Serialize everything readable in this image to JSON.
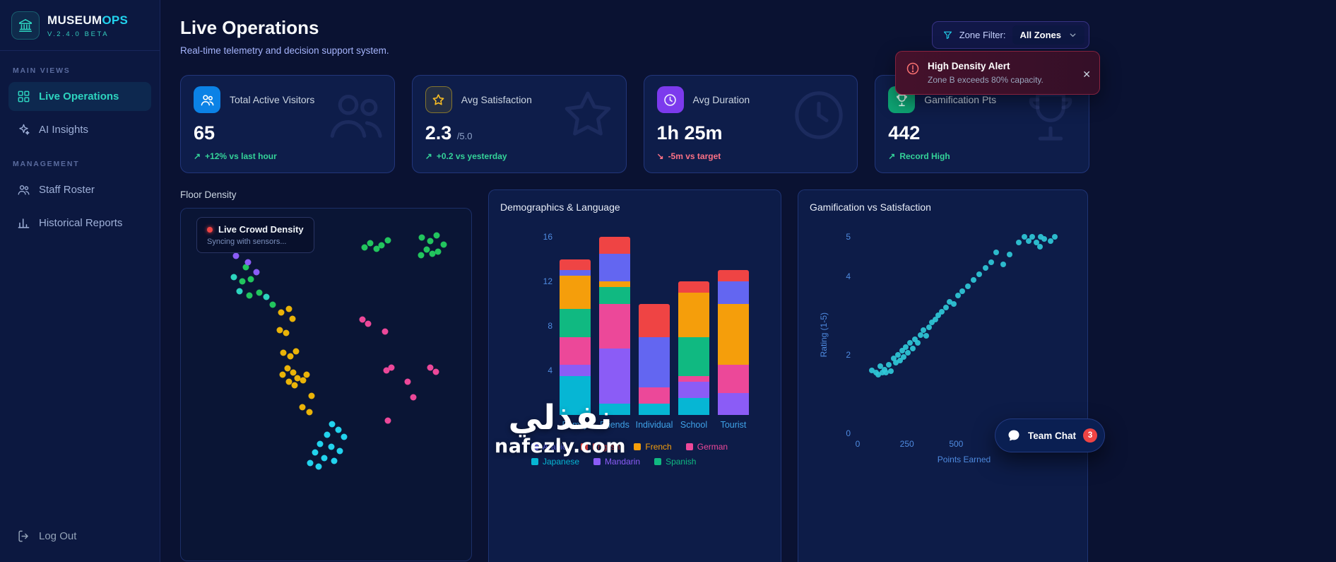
{
  "app": {
    "brand_primary": "MUSEUM",
    "brand_accent": "OPS",
    "version": "V.2.4.0 BETA"
  },
  "sidebar": {
    "sections": [
      {
        "label": "MAIN VIEWS",
        "items": [
          {
            "label": "Live Operations"
          },
          {
            "label": "AI Insights"
          }
        ]
      },
      {
        "label": "MANAGEMENT",
        "items": [
          {
            "label": "Staff Roster"
          },
          {
            "label": "Historical Reports"
          }
        ]
      }
    ],
    "logout_label": "Log Out"
  },
  "header": {
    "title": "Live Operations",
    "subtitle": "Real-time telemetry and decision support system.",
    "zone_filter_label": "Zone Filter:",
    "zone_filter_value": "All Zones"
  },
  "alert": {
    "title": "High Density Alert",
    "message": "Zone B exceeds 80% capacity.",
    "close_label": "✕"
  },
  "kpis": [
    {
      "label": "Total Active Visitors",
      "value": "65",
      "suffix": "",
      "delta": "+12% vs last hour",
      "trend": "up",
      "arrow": "↗"
    },
    {
      "label": "Avg Satisfaction",
      "value": "2.3",
      "suffix": "/5.0",
      "delta": "+0.2 vs yesterday",
      "trend": "up",
      "arrow": "↗"
    },
    {
      "label": "Avg Duration",
      "value": "1h 25m",
      "suffix": "",
      "delta": "-5m vs target",
      "trend": "down",
      "arrow": "↘"
    },
    {
      "label": "Gamification Pts",
      "value": "442",
      "suffix": "",
      "delta": "Record High",
      "trend": "up",
      "arrow": "↗"
    }
  ],
  "floor_density": {
    "title": "Floor Density",
    "tooltip_title": "Live Crowd Density",
    "tooltip_sub": "Syncing with sensors..."
  },
  "team_chat": {
    "label": "Team Chat",
    "badge": "3"
  },
  "watermark": {
    "line1": "نفذلي",
    "line2": "nafezly.com"
  },
  "chart_data": [
    {
      "id": "floor_density",
      "type": "scatter",
      "title": "Floor Density",
      "units": "percent of panel width/height",
      "palette": {
        "green": "#22c55e",
        "teal": "#2dd4bf",
        "yellow": "#eab308",
        "pink": "#ec4899",
        "cyan": "#22d3ee",
        "purple": "#8b5cf6"
      },
      "points": [
        [
          22.3,
          16.6,
          "green"
        ],
        [
          21.1,
          20.6,
          "green"
        ],
        [
          24.2,
          20.0,
          "green"
        ],
        [
          23.5,
          24.6,
          "green"
        ],
        [
          26.9,
          23.8,
          "green"
        ],
        [
          31.7,
          27.4,
          "green"
        ],
        [
          18.2,
          19.4,
          "teal"
        ],
        [
          20.1,
          23.4,
          "teal"
        ],
        [
          29.5,
          25.0,
          "teal"
        ],
        [
          18.9,
          13.4,
          "purple"
        ],
        [
          23.0,
          15.2,
          "purple"
        ],
        [
          26.0,
          18.0,
          "purple"
        ],
        [
          34.6,
          29.6,
          "yellow"
        ],
        [
          37.3,
          28.6,
          "yellow"
        ],
        [
          38.5,
          31.4,
          "yellow"
        ],
        [
          34.1,
          34.6,
          "yellow"
        ],
        [
          36.3,
          35.4,
          "yellow"
        ],
        [
          35.4,
          41.0,
          "yellow"
        ],
        [
          37.8,
          42.0,
          "yellow"
        ],
        [
          39.7,
          40.6,
          "yellow"
        ],
        [
          36.8,
          45.4,
          "yellow"
        ],
        [
          38.7,
          46.6,
          "yellow"
        ],
        [
          35.1,
          47.2,
          "yellow"
        ],
        [
          40.2,
          48.2,
          "yellow"
        ],
        [
          37.3,
          49.2,
          "yellow"
        ],
        [
          39.2,
          50.2,
          "yellow"
        ],
        [
          42.1,
          48.8,
          "yellow"
        ],
        [
          43.3,
          47.2,
          "yellow"
        ],
        [
          45.0,
          53.2,
          "yellow"
        ],
        [
          41.9,
          56.4,
          "yellow"
        ],
        [
          44.3,
          57.8,
          "yellow"
        ],
        [
          63.2,
          11.0,
          "green"
        ],
        [
          65.1,
          9.8,
          "green"
        ],
        [
          67.3,
          11.4,
          "green"
        ],
        [
          69.2,
          10.4,
          "green"
        ],
        [
          71.2,
          9.0,
          "green"
        ],
        [
          83.0,
          8.2,
          "green"
        ],
        [
          86.0,
          9.2,
          "green"
        ],
        [
          88.1,
          7.6,
          "green"
        ],
        [
          84.7,
          11.6,
          "green"
        ],
        [
          86.7,
          12.8,
          "green"
        ],
        [
          82.8,
          13.2,
          "green"
        ],
        [
          88.6,
          12.2,
          "green"
        ],
        [
          90.6,
          10.2,
          "green"
        ],
        [
          62.5,
          31.6,
          "pink"
        ],
        [
          64.4,
          32.8,
          "pink"
        ],
        [
          70.2,
          35.0,
          "pink"
        ],
        [
          72.4,
          45.2,
          "pink"
        ],
        [
          70.9,
          46.0,
          "pink"
        ],
        [
          86.0,
          45.2,
          "pink"
        ],
        [
          87.9,
          46.4,
          "pink"
        ],
        [
          78.2,
          49.2,
          "pink"
        ],
        [
          80.1,
          53.6,
          "pink"
        ],
        [
          71.2,
          60.2,
          "pink"
        ],
        [
          52.1,
          61.2,
          "cyan"
        ],
        [
          54.2,
          62.8,
          "cyan"
        ],
        [
          50.4,
          64.2,
          "cyan"
        ],
        [
          56.2,
          64.8,
          "cyan"
        ],
        [
          47.9,
          66.8,
          "cyan"
        ],
        [
          51.8,
          67.6,
          "cyan"
        ],
        [
          54.7,
          68.8,
          "cyan"
        ],
        [
          46.2,
          69.2,
          "cyan"
        ],
        [
          49.4,
          70.8,
          "cyan"
        ],
        [
          52.8,
          71.6,
          "cyan"
        ],
        [
          44.6,
          72.2,
          "cyan"
        ],
        [
          47.5,
          73.2,
          "cyan"
        ]
      ]
    },
    {
      "id": "demographics",
      "type": "stacked-bar",
      "title": "Demographics & Language",
      "categories": [
        "Family",
        "Friends",
        "Individual",
        "School",
        "Tourist"
      ],
      "series_bottom_to_top": [
        {
          "name": "Japanese",
          "color": "#06b6d4",
          "values": [
            3.5,
            1,
            1,
            1.5,
            0
          ]
        },
        {
          "name": "Mandarin",
          "color": "#8b5cf6",
          "values": [
            1,
            5,
            0,
            1.5,
            2
          ]
        },
        {
          "name": "German",
          "color": "#ec4899",
          "values": [
            2.5,
            4,
            1.5,
            0.5,
            2.5
          ]
        },
        {
          "name": "Spanish",
          "color": "#10b981",
          "values": [
            2.5,
            1.5,
            0,
            3.5,
            0
          ]
        },
        {
          "name": "French",
          "color": "#f59e0b",
          "values": [
            3,
            0.5,
            0,
            4,
            5.5
          ]
        },
        {
          "name": "Arabic",
          "color": "#6366f1",
          "values": [
            0.5,
            2.5,
            4.5,
            0,
            2
          ]
        },
        {
          "name": "English",
          "color": "#ef4444",
          "values": [
            1,
            1.5,
            3,
            1,
            1
          ]
        }
      ],
      "legend_order": [
        "Arabic",
        "English",
        "French",
        "German",
        "Japanese",
        "Mandarin",
        "Spanish"
      ],
      "ylim": [
        0,
        16
      ],
      "yticks": [
        16,
        12,
        8,
        4,
        0
      ],
      "grid": false,
      "legend_position": "bottom"
    },
    {
      "id": "gamification",
      "type": "scatter",
      "title": "Gamification vs Satisfaction",
      "xlabel": "Points Earned",
      "ylabel": "Rating (1-5)",
      "xlim": [
        0,
        1080
      ],
      "ylim": [
        0,
        5
      ],
      "xticks": [
        0,
        250,
        500
      ],
      "yticks": [
        5,
        4,
        2,
        0
      ],
      "color": "#2fc8d8",
      "grid": false,
      "points": [
        [
          70,
          1.6
        ],
        [
          95,
          1.55
        ],
        [
          105,
          1.5
        ],
        [
          115,
          1.7
        ],
        [
          125,
          1.55
        ],
        [
          135,
          1.62
        ],
        [
          145,
          1.55
        ],
        [
          158,
          1.75
        ],
        [
          170,
          1.58
        ],
        [
          182,
          1.9
        ],
        [
          195,
          1.8
        ],
        [
          205,
          2.0
        ],
        [
          215,
          1.85
        ],
        [
          225,
          2.1
        ],
        [
          235,
          1.95
        ],
        [
          245,
          2.2
        ],
        [
          255,
          2.05
        ],
        [
          265,
          2.3
        ],
        [
          280,
          2.15
        ],
        [
          292,
          2.4
        ],
        [
          305,
          2.3
        ],
        [
          318,
          2.5
        ],
        [
          332,
          2.62
        ],
        [
          348,
          2.48
        ],
        [
          362,
          2.7
        ],
        [
          378,
          2.82
        ],
        [
          394,
          2.9
        ],
        [
          410,
          3.0
        ],
        [
          428,
          3.1
        ],
        [
          448,
          3.2
        ],
        [
          468,
          3.35
        ],
        [
          488,
          3.3
        ],
        [
          508,
          3.5
        ],
        [
          530,
          3.62
        ],
        [
          558,
          3.75
        ],
        [
          588,
          3.9
        ],
        [
          618,
          4.05
        ],
        [
          648,
          4.2
        ],
        [
          678,
          4.35
        ],
        [
          705,
          4.6
        ],
        [
          738,
          4.3
        ],
        [
          770,
          4.55
        ],
        [
          818,
          4.85
        ],
        [
          845,
          5.0
        ],
        [
          868,
          4.9
        ],
        [
          888,
          5.0
        ],
        [
          908,
          4.85
        ],
        [
          928,
          5.0
        ],
        [
          948,
          4.95
        ],
        [
          978,
          4.9
        ],
        [
          1000,
          5.0
        ],
        [
          925,
          4.75
        ]
      ]
    }
  ]
}
